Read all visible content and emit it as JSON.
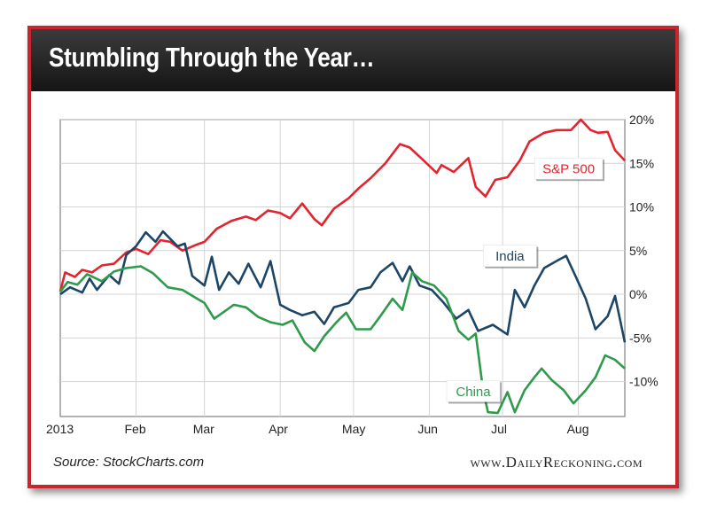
{
  "header": {
    "title": "Stumbling Through the Year…"
  },
  "footer": {
    "source": "Source: StockCharts.com",
    "brand": "www.DailyReckoning.com"
  },
  "colors": {
    "frame": "#c8252c",
    "header_bg": "#1f1f1f",
    "sp500": "#e3232d",
    "india": "#1d4566",
    "china": "#2e9a4c"
  },
  "chart_data": {
    "type": "line",
    "x_start": "2013-01-01",
    "x_end": "2013-08-20",
    "ylim": [
      -14,
      20
    ],
    "ytick_values": [
      20,
      15,
      10,
      5,
      0,
      -5,
      -10
    ],
    "ytick_labels": [
      "20%",
      "15%",
      "10%",
      "5%",
      "0%",
      "-5%",
      "-10%"
    ],
    "xtick_dates": [
      "2013-01-01",
      "2013-02-01",
      "2013-03-01",
      "2013-04-01",
      "2013-05-01",
      "2013-06-01",
      "2013-07-01",
      "2013-08-01"
    ],
    "xtick_labels": [
      "2013",
      "Feb",
      "Mar",
      "Apr",
      "May",
      "Jun",
      "Jul",
      "Aug"
    ],
    "grid": true,
    "series": [
      {
        "name": "S&P 500",
        "color": "#e3232d",
        "points": [
          [
            "2013-01-01",
            0.3
          ],
          [
            "2013-01-03",
            2.5
          ],
          [
            "2013-01-07",
            2.0
          ],
          [
            "2013-01-10",
            2.8
          ],
          [
            "2013-01-14",
            2.5
          ],
          [
            "2013-01-18",
            3.3
          ],
          [
            "2013-01-23",
            3.5
          ],
          [
            "2013-01-28",
            4.8
          ],
          [
            "2013-02-01",
            5.2
          ],
          [
            "2013-02-06",
            4.6
          ],
          [
            "2013-02-11",
            6.2
          ],
          [
            "2013-02-15",
            6.0
          ],
          [
            "2013-02-20",
            5.0
          ],
          [
            "2013-02-25",
            5.6
          ],
          [
            "2013-03-01",
            6.0
          ],
          [
            "2013-03-06",
            7.5
          ],
          [
            "2013-03-12",
            8.4
          ],
          [
            "2013-03-18",
            8.9
          ],
          [
            "2013-03-22",
            8.5
          ],
          [
            "2013-03-27",
            9.6
          ],
          [
            "2013-04-01",
            9.3
          ],
          [
            "2013-04-05",
            8.7
          ],
          [
            "2013-04-10",
            10.4
          ],
          [
            "2013-04-15",
            8.6
          ],
          [
            "2013-04-18",
            7.9
          ],
          [
            "2013-04-23",
            9.8
          ],
          [
            "2013-04-29",
            11.0
          ],
          [
            "2013-05-03",
            12.1
          ],
          [
            "2013-05-08",
            13.3
          ],
          [
            "2013-05-14",
            15.0
          ],
          [
            "2013-05-20",
            17.2
          ],
          [
            "2013-05-24",
            16.8
          ],
          [
            "2013-05-29",
            15.5
          ],
          [
            "2013-06-04",
            13.9
          ],
          [
            "2013-06-06",
            14.8
          ],
          [
            "2013-06-11",
            14.0
          ],
          [
            "2013-06-17",
            15.6
          ],
          [
            "2013-06-20",
            12.3
          ],
          [
            "2013-06-24",
            11.2
          ],
          [
            "2013-06-28",
            13.1
          ],
          [
            "2013-07-03",
            13.4
          ],
          [
            "2013-07-08",
            15.3
          ],
          [
            "2013-07-12",
            17.5
          ],
          [
            "2013-07-18",
            18.5
          ],
          [
            "2013-07-23",
            18.8
          ],
          [
            "2013-07-29",
            18.8
          ],
          [
            "2013-08-02",
            20.0
          ],
          [
            "2013-08-06",
            18.8
          ],
          [
            "2013-08-09",
            18.5
          ],
          [
            "2013-08-13",
            18.6
          ],
          [
            "2013-08-16",
            16.5
          ],
          [
            "2013-08-20",
            15.3
          ]
        ]
      },
      {
        "name": "India",
        "color": "#1d4566",
        "points": [
          [
            "2013-01-01",
            0.0
          ],
          [
            "2013-01-05",
            0.8
          ],
          [
            "2013-01-10",
            0.2
          ],
          [
            "2013-01-13",
            1.8
          ],
          [
            "2013-01-16",
            0.5
          ],
          [
            "2013-01-21",
            2.2
          ],
          [
            "2013-01-25",
            1.2
          ],
          [
            "2013-01-28",
            4.5
          ],
          [
            "2013-02-01",
            5.5
          ],
          [
            "2013-02-05",
            7.1
          ],
          [
            "2013-02-09",
            6.0
          ],
          [
            "2013-02-12",
            7.2
          ],
          [
            "2013-02-18",
            5.5
          ],
          [
            "2013-02-21",
            5.8
          ],
          [
            "2013-02-24",
            2.1
          ],
          [
            "2013-03-01",
            1.0
          ],
          [
            "2013-03-04",
            4.3
          ],
          [
            "2013-03-07",
            0.5
          ],
          [
            "2013-03-11",
            2.5
          ],
          [
            "2013-03-15",
            1.2
          ],
          [
            "2013-03-19",
            3.5
          ],
          [
            "2013-03-24",
            0.8
          ],
          [
            "2013-03-28",
            3.8
          ],
          [
            "2013-04-01",
            -1.2
          ],
          [
            "2013-04-05",
            -1.8
          ],
          [
            "2013-04-10",
            -2.4
          ],
          [
            "2013-04-15",
            -2.0
          ],
          [
            "2013-04-19",
            -3.4
          ],
          [
            "2013-04-23",
            -1.5
          ],
          [
            "2013-04-29",
            -1.0
          ],
          [
            "2013-05-03",
            0.5
          ],
          [
            "2013-05-08",
            0.8
          ],
          [
            "2013-05-12",
            2.5
          ],
          [
            "2013-05-17",
            3.6
          ],
          [
            "2013-05-21",
            1.5
          ],
          [
            "2013-05-24",
            3.2
          ],
          [
            "2013-05-28",
            1.0
          ],
          [
            "2013-06-02",
            0.5
          ],
          [
            "2013-06-07",
            -1.0
          ],
          [
            "2013-06-12",
            -2.8
          ],
          [
            "2013-06-17",
            -1.8
          ],
          [
            "2013-06-21",
            -4.2
          ],
          [
            "2013-06-27",
            -3.5
          ],
          [
            "2013-07-03",
            -4.6
          ],
          [
            "2013-07-06",
            0.5
          ],
          [
            "2013-07-10",
            -1.5
          ],
          [
            "2013-07-14",
            1.0
          ],
          [
            "2013-07-18",
            3.0
          ],
          [
            "2013-07-23",
            3.8
          ],
          [
            "2013-07-27",
            4.4
          ],
          [
            "2013-07-31",
            2.0
          ],
          [
            "2013-08-04",
            -0.5
          ],
          [
            "2013-08-08",
            -4.0
          ],
          [
            "2013-08-13",
            -2.5
          ],
          [
            "2013-08-16",
            -0.2
          ],
          [
            "2013-08-20",
            -5.5
          ]
        ]
      },
      {
        "name": "China",
        "color": "#2e9a4c",
        "points": [
          [
            "2013-01-01",
            0.3
          ],
          [
            "2013-01-04",
            1.4
          ],
          [
            "2013-01-08",
            1.1
          ],
          [
            "2013-01-12",
            2.3
          ],
          [
            "2013-01-18",
            1.5
          ],
          [
            "2013-01-23",
            2.6
          ],
          [
            "2013-01-28",
            3.0
          ],
          [
            "2013-02-03",
            3.2
          ],
          [
            "2013-02-08",
            2.4
          ],
          [
            "2013-02-14",
            0.8
          ],
          [
            "2013-02-20",
            0.5
          ],
          [
            "2013-02-26",
            -0.5
          ],
          [
            "2013-03-01",
            -1.0
          ],
          [
            "2013-03-05",
            -2.8
          ],
          [
            "2013-03-09",
            -2.0
          ],
          [
            "2013-03-13",
            -1.2
          ],
          [
            "2013-03-18",
            -1.5
          ],
          [
            "2013-03-23",
            -2.6
          ],
          [
            "2013-03-28",
            -3.2
          ],
          [
            "2013-04-02",
            -3.5
          ],
          [
            "2013-04-06",
            -3.0
          ],
          [
            "2013-04-11",
            -5.5
          ],
          [
            "2013-04-15",
            -6.5
          ],
          [
            "2013-04-19",
            -4.8
          ],
          [
            "2013-04-24",
            -3.2
          ],
          [
            "2013-04-28",
            -2.1
          ],
          [
            "2013-05-02",
            -4.0
          ],
          [
            "2013-05-08",
            -4.0
          ],
          [
            "2013-05-12",
            -2.5
          ],
          [
            "2013-05-17",
            -0.5
          ],
          [
            "2013-05-21",
            -1.8
          ],
          [
            "2013-05-25",
            2.5
          ],
          [
            "2013-05-29",
            1.5
          ],
          [
            "2013-06-03",
            1.0
          ],
          [
            "2013-06-08",
            -0.5
          ],
          [
            "2013-06-13",
            -4.2
          ],
          [
            "2013-06-17",
            -5.2
          ],
          [
            "2013-06-20",
            -4.5
          ],
          [
            "2013-06-23",
            -11.0
          ],
          [
            "2013-06-25",
            -13.5
          ],
          [
            "2013-06-29",
            -13.6
          ],
          [
            "2013-07-03",
            -11.2
          ],
          [
            "2013-07-06",
            -13.5
          ],
          [
            "2013-07-10",
            -11.0
          ],
          [
            "2013-07-14",
            -9.5
          ],
          [
            "2013-07-17",
            -8.5
          ],
          [
            "2013-07-21",
            -9.8
          ],
          [
            "2013-07-26",
            -11.0
          ],
          [
            "2013-07-30",
            -12.5
          ],
          [
            "2013-08-04",
            -11.0
          ],
          [
            "2013-08-08",
            -9.5
          ],
          [
            "2013-08-12",
            -7.0
          ],
          [
            "2013-08-16",
            -7.5
          ],
          [
            "2013-08-20",
            -8.5
          ]
        ]
      }
    ],
    "labels": [
      {
        "text": "S&P 500",
        "series": "S&P 500",
        "date": "2013-07-28",
        "value": 14.4
      },
      {
        "text": "India",
        "series": "India",
        "date": "2013-07-04",
        "value": 4.4
      },
      {
        "text": "China",
        "series": "China",
        "date": "2013-06-19",
        "value": -11.1
      }
    ]
  }
}
